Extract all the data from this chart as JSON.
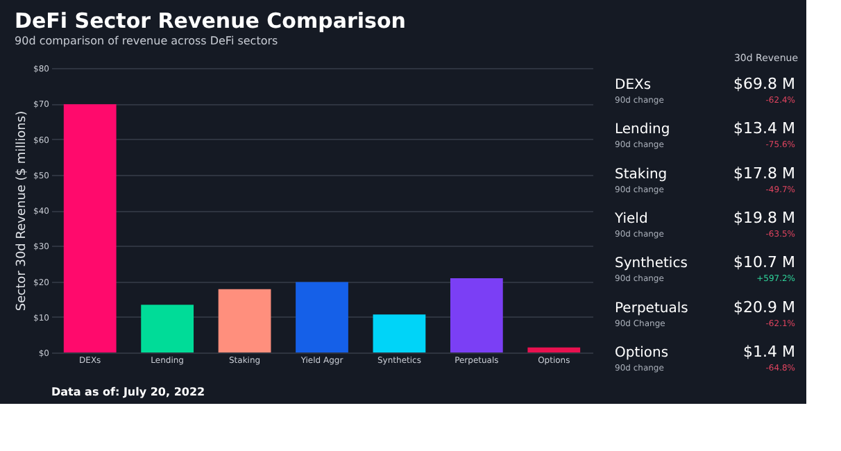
{
  "chart_data": [
    {
      "type": "bar",
      "title": "DeFi Sector Revenue Comparison",
      "subtitle": "90d comparison of revenue across DeFi sectors",
      "ylabel": "Sector 30d Revenue ($ millions)",
      "grid": "y",
      "categories": [
        "DEXs",
        "Lending",
        "Staking",
        "Yield Aggr",
        "Synthetics",
        "Perpetuals",
        "Options"
      ],
      "values": [
        69.8,
        13.4,
        17.8,
        19.8,
        10.7,
        20.9,
        1.4
      ],
      "colors": [
        "#ff0a6c",
        "#00dc98",
        "#ff8f7d",
        "#1560e8",
        "#00d4f8",
        "#7b3ff5",
        "#e8114f"
      ],
      "ylim": [
        0,
        80
      ],
      "yticks": [
        {
          "value": 0,
          "label": "$0"
        },
        {
          "value": 10,
          "label": "$10"
        },
        {
          "value": 20,
          "label": "$20"
        },
        {
          "value": 30,
          "label": "$30"
        },
        {
          "value": 40,
          "label": "$40"
        },
        {
          "value": 50,
          "label": "$50"
        },
        {
          "value": 60,
          "label": "$60"
        },
        {
          "value": 70,
          "label": "$70"
        },
        {
          "value": 80,
          "label": "$80"
        }
      ],
      "annotations": [
        "Data as of: July 20, 2022"
      ]
    },
    {
      "type": "other",
      "title": "30d Revenue",
      "annotations": [
        "DEXs",
        "90d change",
        "$69.8 M",
        "-62.4%",
        "Lending",
        "90d change",
        "$13.4 M",
        "-75.6%",
        "Staking",
        "90d change",
        "$17.8 M",
        "-49.7%",
        "Yield",
        "90d change",
        "$19.8 M",
        "-63.5%",
        "Synthetics",
        "90d change",
        "$10.7 M",
        "+597.2%",
        "Perpetuals",
        "90d Change",
        "$20.9 M",
        "-62.1%",
        "Options",
        "90d change",
        "$1.4 M",
        "-64.8%"
      ]
    }
  ]
}
